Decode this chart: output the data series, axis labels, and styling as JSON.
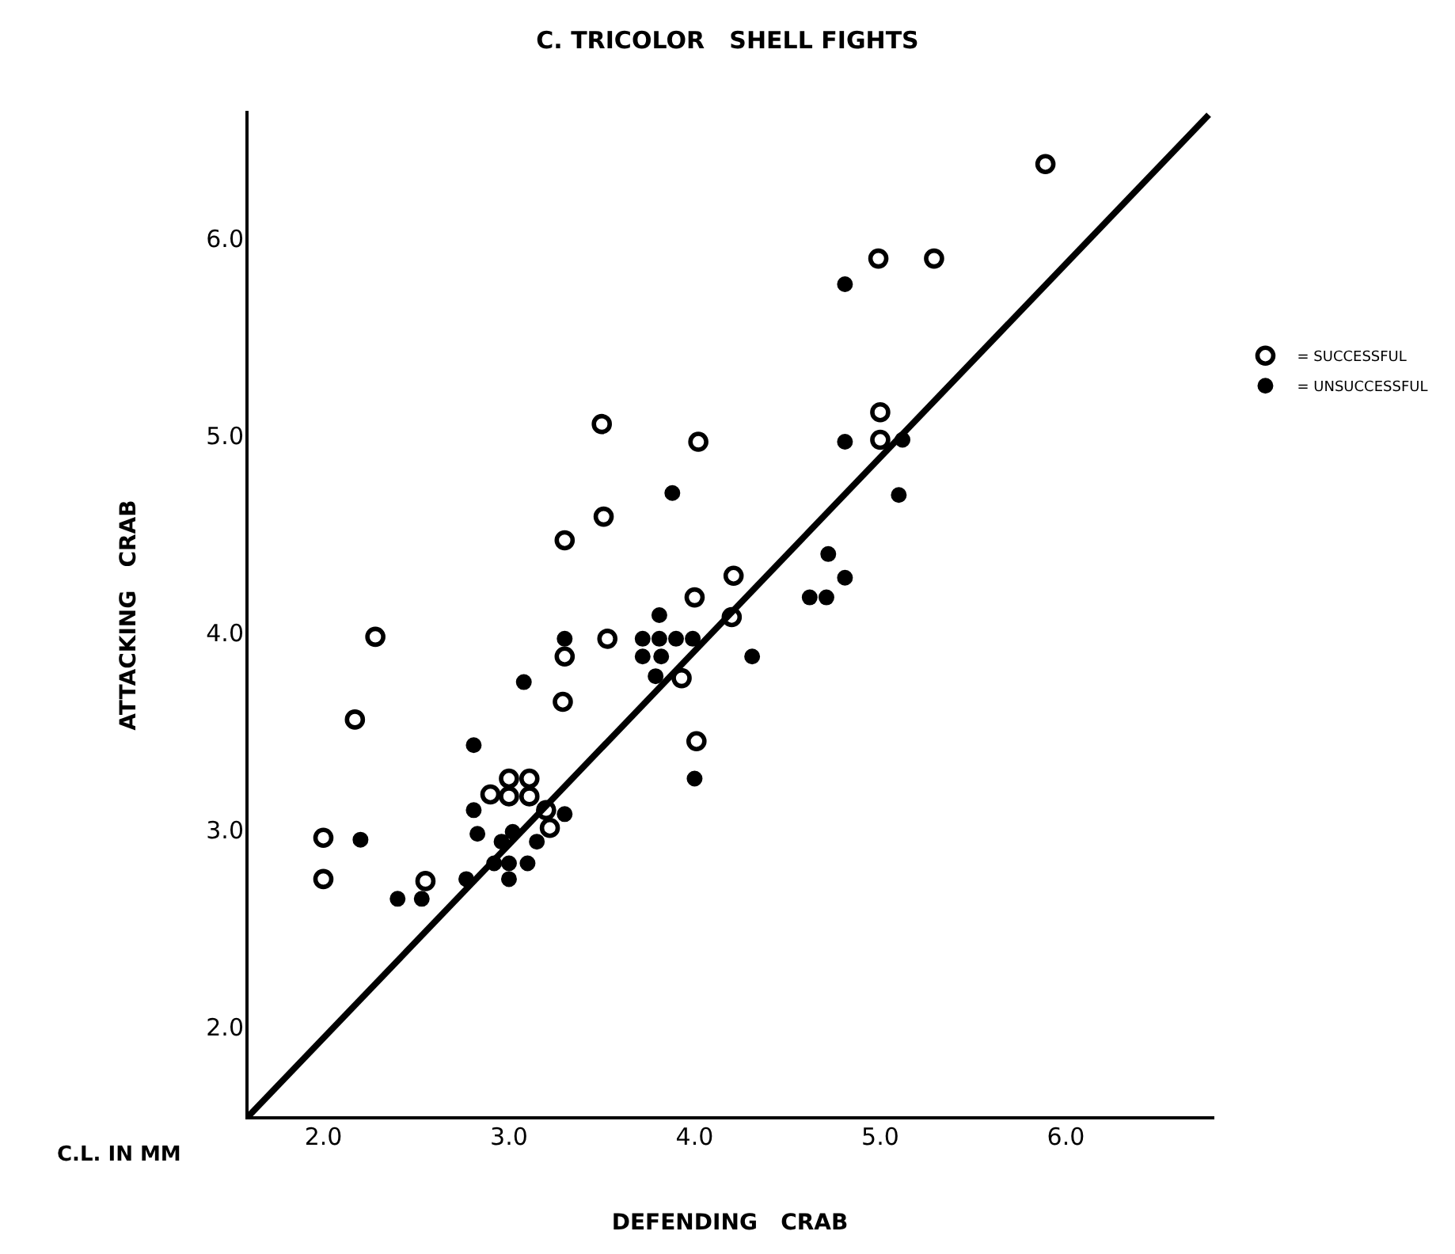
{
  "chart_data": {
    "type": "scatter",
    "title": "C. TRICOLOR   SHELL FIGHTS",
    "xlabel": "DEFENDING   CRAB",
    "ylabel": "ATTACKING   CRAB",
    "annotations": [
      "C.L. IN MM"
    ],
    "xlim": [
      1.58,
      6.8
    ],
    "ylim": [
      1.53,
      6.65
    ],
    "xticks": [
      {
        "value": 2,
        "label": "2.0"
      },
      {
        "value": 3,
        "label": "3.0"
      },
      {
        "value": 4,
        "label": "4.0"
      },
      {
        "value": 5,
        "label": "5.0"
      },
      {
        "value": 6,
        "label": "6.0"
      }
    ],
    "yticks": [
      {
        "value": 2,
        "label": "2.0"
      },
      {
        "value": 3,
        "label": "3.0"
      },
      {
        "value": 4,
        "label": "4.0"
      },
      {
        "value": 5,
        "label": "5.0"
      },
      {
        "value": 6,
        "label": "6.0"
      }
    ],
    "grid": false,
    "legend": "right",
    "series": [
      {
        "name": "= SUCCESSFUL",
        "color": "#000000",
        "x": [
          2.0,
          2.0,
          2.28,
          2.17,
          2.55,
          2.9,
          3.0,
          3.11,
          3.0,
          3.11,
          3.2,
          3.22,
          3.5,
          4.02,
          3.51,
          3.3,
          4.21,
          4.0,
          4.2,
          3.53,
          3.3,
          3.93,
          3.29,
          4.01,
          5.89,
          4.99,
          5.29,
          5.0,
          5.0
        ],
        "values": [
          2.75,
          2.96,
          3.98,
          3.56,
          2.74,
          3.18,
          3.26,
          3.26,
          3.17,
          3.17,
          3.1,
          3.01,
          5.06,
          4.97,
          4.59,
          4.47,
          4.29,
          4.18,
          4.08,
          3.97,
          3.88,
          3.77,
          3.65,
          3.45,
          6.38,
          5.9,
          5.9,
          5.12,
          4.98
        ]
      },
      {
        "name": "= UNSUCCESSFUL",
        "color": "#000000",
        "marker": "circle",
        "x": [
          2.81,
          2.2,
          2.4,
          2.53,
          2.81,
          2.83,
          2.96,
          3.02,
          3.3,
          3.15,
          2.77,
          2.92,
          3.0,
          3.1,
          3.0,
          3.88,
          3.81,
          3.3,
          3.72,
          3.81,
          3.9,
          3.99,
          3.72,
          3.82,
          4.31,
          3.79,
          3.08,
          4.0,
          4.81,
          4.81,
          5.12,
          5.1,
          4.72,
          4.81,
          4.62,
          4.71
        ],
        "values": [
          3.43,
          2.95,
          2.65,
          2.65,
          3.1,
          2.98,
          2.94,
          2.99,
          3.08,
          2.94,
          2.75,
          2.83,
          2.83,
          2.83,
          2.75,
          4.71,
          4.09,
          3.97,
          3.97,
          3.97,
          3.97,
          3.97,
          3.88,
          3.88,
          3.88,
          3.78,
          3.75,
          3.26,
          5.77,
          4.97,
          4.98,
          4.7,
          4.4,
          4.28,
          4.18,
          4.18
        ]
      },
      {
        "type": "line",
        "color": "#000000",
        "line_style": "solid",
        "x": [
          1.58,
          6.77
        ],
        "values": [
          1.53,
          6.63
        ]
      }
    ]
  }
}
